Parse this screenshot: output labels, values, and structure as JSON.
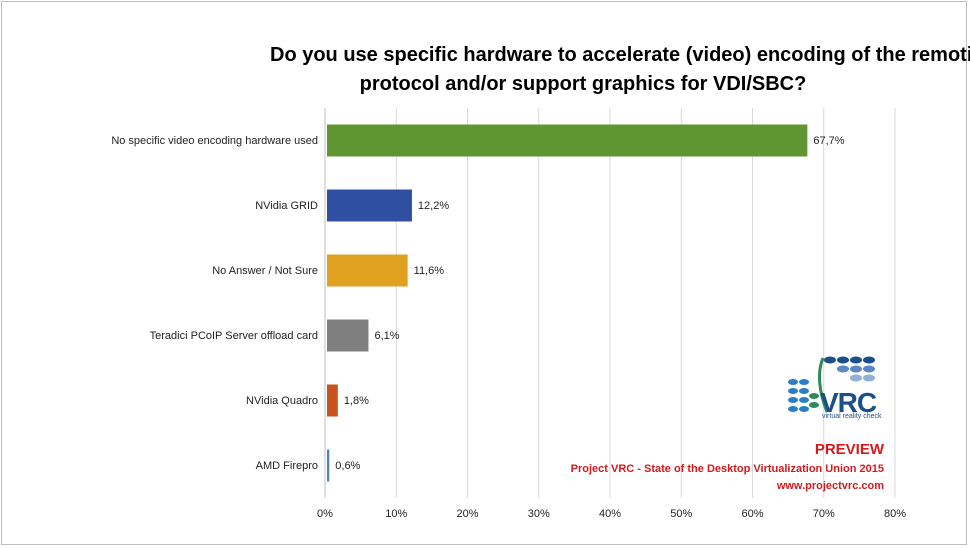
{
  "chart_data": {
    "type": "bar",
    "orientation": "horizontal",
    "title_lines": [
      "Do you use specific hardware to accelerate (video) encoding of the remoting",
      "protocol and/or support graphics for VDI/SBC?"
    ],
    "categories": [
      "No specific video encoding hardware used",
      "NVidia GRID",
      "No Answer / Not Sure",
      "Teradici PCoIP Server offload card",
      "NVidia Quadro",
      "AMD Firepro"
    ],
    "values": [
      67.7,
      12.2,
      11.6,
      6.1,
      1.8,
      0.6
    ],
    "value_labels": [
      "67,7%",
      "12,2%",
      "11,6%",
      "6,1%",
      "1,8%",
      "0,6%"
    ],
    "colors": [
      "#5e9732",
      "#2f4fa2",
      "#e0a020",
      "#7f7f7f",
      "#c8531c",
      "#4f81bd"
    ],
    "xlim": [
      0,
      80
    ],
    "xticks": [
      0,
      10,
      20,
      30,
      40,
      50,
      60,
      70,
      80
    ],
    "xtick_labels": [
      "0%",
      "10%",
      "20%",
      "30%",
      "40%",
      "50%",
      "60%",
      "70%",
      "80%"
    ],
    "grid": true,
    "xlabel": "",
    "ylabel": ""
  },
  "watermark": {
    "line1": "PREVIEW",
    "line2": "Project VRC - State of the Desktop Virtualization Union 2015",
    "line3": "www.projectvrc.com"
  },
  "logo": {
    "name": "VRC",
    "tagline": "virtual reality check",
    "icon": "vrc-logo-icon"
  }
}
